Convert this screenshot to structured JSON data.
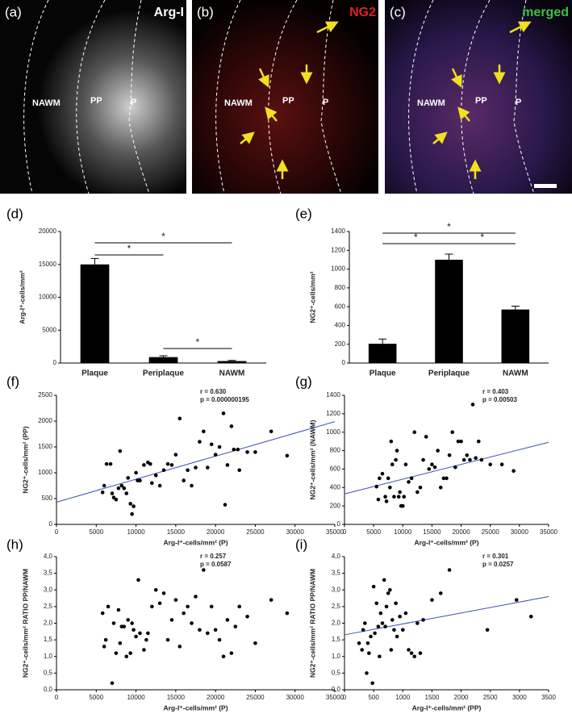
{
  "images": [
    {
      "label": "(a)",
      "title": "Arg-I",
      "color": "#ffffff",
      "regions": [
        "NAWM",
        "PP",
        "P"
      ]
    },
    {
      "label": "(b)",
      "title": "NG2",
      "color": "#e02020",
      "regions": [
        "NAWM",
        "PP",
        "P"
      ]
    },
    {
      "label": "(c)",
      "title": "merged",
      "color": "#40c040",
      "regions": [
        "NAWM",
        "PP",
        "P"
      ]
    }
  ],
  "chart_data": [
    {
      "type": "bar",
      "label": "(d)",
      "ylabel": "Arg-I⁺-cells/mm²",
      "categories": [
        "Plaque",
        "Periplaque",
        "NAWM"
      ],
      "values": [
        15000,
        900,
        300
      ],
      "errors": [
        900,
        200,
        100
      ],
      "color": "#000000",
      "ylim": [
        0,
        20000
      ],
      "yticks": [
        0,
        5000,
        10000,
        15000,
        20000
      ],
      "significance": [
        "*",
        "*",
        "*"
      ]
    },
    {
      "type": "bar",
      "label": "(e)",
      "ylabel": "NG2⁺-cells/mm²",
      "categories": [
        "Plaque",
        "Periplaque",
        "NAWM"
      ],
      "values": [
        205,
        1100,
        570
      ],
      "errors": [
        50,
        60,
        35
      ],
      "color": "#000000",
      "ylim": [
        0,
        1400
      ],
      "yticks": [
        0,
        200,
        400,
        600,
        800,
        1000,
        1200,
        1400
      ],
      "significance": [
        "*",
        "*",
        "*"
      ]
    },
    {
      "type": "scatter",
      "label": "(f)",
      "xlabel": "Arg-I⁺-cells/mm² (P)",
      "ylabel": "NG2⁺-cells/mm² (PP)",
      "annotations": [
        "r = 0.630",
        "p = 0.000000195"
      ],
      "color": "#000000",
      "trend_color": "#3a4fc0",
      "x": [
        5800,
        6000,
        6300,
        6800,
        7000,
        7200,
        7500,
        7800,
        8000,
        8200,
        8500,
        8800,
        9000,
        9300,
        9500,
        9700,
        10000,
        10200,
        10500,
        11000,
        11500,
        11800,
        12000,
        12500,
        13000,
        13500,
        14000,
        14500,
        15000,
        15500,
        16000,
        16500,
        17000,
        17500,
        18000,
        18500,
        19000,
        19500,
        20000,
        20500,
        21000,
        21200,
        21500,
        22000,
        22300,
        22800,
        23000,
        24000,
        25000,
        27000,
        29000
      ],
      "y": [
        620,
        750,
        1170,
        1170,
        600,
        520,
        480,
        700,
        1420,
        750,
        700,
        600,
        900,
        400,
        200,
        350,
        1000,
        850,
        850,
        1150,
        1200,
        1170,
        800,
        950,
        750,
        1050,
        1170,
        1150,
        1350,
        2050,
        850,
        1050,
        750,
        1100,
        1600,
        1800,
        1100,
        1550,
        1350,
        1500,
        2150,
        380,
        1150,
        1900,
        1450,
        1450,
        1050,
        1400,
        1400,
        1800,
        1330
      ],
      "trendline": {
        "x": [
          0,
          35000
        ],
        "y": [
          430,
          1990
        ]
      },
      "xlim": [
        0,
        35000
      ],
      "xticks": [
        0,
        5000,
        10000,
        15000,
        20000,
        25000,
        30000,
        35000
      ],
      "ylim": [
        0,
        2500
      ],
      "yticks": [
        0,
        500,
        1000,
        1500,
        2000,
        2500
      ]
    },
    {
      "type": "scatter",
      "label": "(g)",
      "xlabel": "Arg-I⁺-cells/mm² (P)",
      "ylabel": "NG2⁺-cells/mm² (NAWM)",
      "annotations": [
        "r = 0.403",
        "p = 0.00503"
      ],
      "color": "#000000",
      "trend_color": "#3a4fc0",
      "x": [
        5500,
        5800,
        6000,
        6500,
        7000,
        7200,
        7500,
        7800,
        8000,
        8200,
        8500,
        8800,
        9000,
        9300,
        9500,
        9700,
        10000,
        10200,
        10500,
        11000,
        11500,
        12000,
        12500,
        13000,
        13500,
        14000,
        14500,
        15000,
        15500,
        16000,
        16500,
        17000,
        17500,
        18000,
        18500,
        19000,
        19500,
        20000,
        20500,
        21000,
        21500,
        22000,
        22500,
        23000,
        23500,
        25000,
        27000,
        29000
      ],
      "y": [
        410,
        270,
        500,
        550,
        300,
        250,
        500,
        400,
        900,
        650,
        300,
        700,
        800,
        300,
        350,
        200,
        200,
        300,
        650,
        460,
        500,
        1000,
        350,
        400,
        700,
        950,
        600,
        650,
        620,
        800,
        400,
        500,
        500,
        750,
        1000,
        620,
        900,
        900,
        700,
        750,
        700,
        1300,
        720,
        900,
        700,
        650,
        650,
        580
      ],
      "trendline": {
        "x": [
          0,
          35000
        ],
        "y": [
          330,
          890
        ]
      },
      "xlim": [
        0,
        35000
      ],
      "xticks": [
        0,
        5000,
        10000,
        15000,
        20000,
        25000,
        30000,
        35000
      ],
      "ylim": [
        0,
        1400
      ],
      "yticks": [
        0,
        200,
        400,
        600,
        800,
        1000,
        1200,
        1400
      ]
    },
    {
      "type": "scatter",
      "label": "(h)",
      "xlabel": "Arg-I⁺-cells/mm² (P)",
      "ylabel": "NG2⁺-cells/mm² RATIO PP/NAWM",
      "annotations": [
        "r = 0.257",
        "p = 0.0587"
      ],
      "color": "#000000",
      "x": [
        5800,
        6000,
        6200,
        6500,
        7000,
        7200,
        7500,
        7800,
        8000,
        8200,
        8500,
        8800,
        9000,
        9300,
        9500,
        9700,
        10000,
        10300,
        10500,
        11000,
        11300,
        11500,
        12000,
        12500,
        13000,
        13500,
        14000,
        14500,
        15000,
        15500,
        16000,
        16500,
        17000,
        17500,
        18000,
        18500,
        19000,
        19500,
        20000,
        20500,
        21000,
        21500,
        22000,
        22500,
        23000,
        24000,
        25000,
        27000,
        29000
      ],
      "y": [
        2.3,
        1.3,
        1.5,
        2.5,
        0.2,
        2.0,
        1.1,
        2.4,
        1.4,
        1.9,
        1.9,
        1.0,
        2.1,
        1.1,
        2.0,
        1.8,
        1.6,
        3.3,
        1.7,
        1.2,
        1.5,
        1.7,
        2.5,
        3.0,
        2.6,
        2.9,
        1.5,
        2.1,
        2.7,
        1.3,
        2.3,
        2.5,
        2.0,
        2.8,
        1.8,
        3.6,
        1.7,
        2.5,
        1.8,
        1.5,
        1.0,
        2.1,
        1.1,
        1.9,
        2.5,
        2.2,
        1.4,
        2.7,
        2.3
      ],
      "xlim": [
        0,
        35000
      ],
      "xticks": [
        0,
        5000,
        10000,
        15000,
        20000,
        25000,
        30000,
        35000
      ],
      "ylim": [
        0,
        4
      ],
      "yticks": [
        {
          "value": 0,
          "label": "0,0"
        },
        {
          "value": 0.5,
          "label": "0,5"
        },
        {
          "value": 1,
          "label": "1,0"
        },
        {
          "value": 1.5,
          "label": "1,5"
        },
        {
          "value": 2,
          "label": "2,0"
        },
        {
          "value": 2.5,
          "label": "2,5"
        },
        {
          "value": 3,
          "label": "3,0"
        },
        {
          "value": 3.5,
          "label": "3,5"
        },
        {
          "value": 4,
          "label": "4,0"
        }
      ]
    },
    {
      "type": "scatter",
      "label": "(i)",
      "xlabel": "Arg-I⁺-cells/mm² (PP)",
      "ylabel": "NG2⁺-cells/mm² RATIO PP/NAWM",
      "annotations": [
        "r = 0.301",
        "p = 0.0257"
      ],
      "color": "#000000",
      "trend_color": "#3a4fc0",
      "x": [
        250,
        300,
        320,
        350,
        380,
        400,
        420,
        450,
        480,
        500,
        520,
        550,
        580,
        600,
        620,
        650,
        680,
        700,
        720,
        750,
        780,
        800,
        820,
        850,
        880,
        900,
        950,
        1000,
        1050,
        1100,
        1150,
        1200,
        1250,
        1300,
        1350,
        1500,
        1650,
        1800,
        2450,
        2950,
        3200
      ],
      "y": [
        1.4,
        1.2,
        1.8,
        2.0,
        0.5,
        1.4,
        1.1,
        1.6,
        0.2,
        3.1,
        1.7,
        2.6,
        1.9,
        1.0,
        2.3,
        2.0,
        3.3,
        1.9,
        2.5,
        2.9,
        3.0,
        1.2,
        2.1,
        1.8,
        2.6,
        1.6,
        2.2,
        1.8,
        2.3,
        1.2,
        1.1,
        1.0,
        2.0,
        1.1,
        2.1,
        2.7,
        2.9,
        3.6,
        1.8,
        2.7,
        2.2
      ],
      "trendline": {
        "x": [
          0,
          3500
        ],
        "y": [
          1.65,
          2.8
        ]
      },
      "xlim": [
        0,
        3500
      ],
      "xticks": [
        0,
        500,
        1000,
        1500,
        2000,
        2500,
        3000,
        3500
      ],
      "ylim": [
        0,
        4
      ],
      "yticks": [
        {
          "value": 0,
          "label": "0,0"
        },
        {
          "value": 0.5,
          "label": "0,5"
        },
        {
          "value": 1,
          "label": "1,0"
        },
        {
          "value": 1.5,
          "label": "1,5"
        },
        {
          "value": 2,
          "label": "2,0"
        },
        {
          "value": 2.5,
          "label": "2,5"
        },
        {
          "value": 3,
          "label": "3,0"
        },
        {
          "value": 3.5,
          "label": "3,5"
        },
        {
          "value": 4,
          "label": "4,0"
        }
      ]
    }
  ]
}
